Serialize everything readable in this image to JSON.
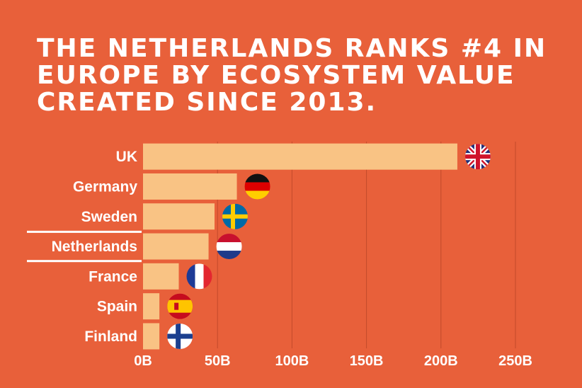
{
  "title_lines": [
    "THE NETHERLANDS RANKS #4 IN",
    "EUROPE BY ECOSYSTEM VALUE",
    "CREATED SINCE 2013."
  ],
  "colors": {
    "background": "#e8603a",
    "bar": "#f9c384",
    "gridline": "#c24a2b",
    "text": "#ffffff",
    "highlight_rule": "#ffffff"
  },
  "chart_data": {
    "type": "bar",
    "orientation": "horizontal",
    "categories": [
      "UK",
      "Germany",
      "Sweden",
      "Netherlands",
      "France",
      "Spain",
      "Finland"
    ],
    "values": [
      211,
      63,
      48,
      44,
      24,
      11,
      11
    ],
    "highlighted_category": "Netherlands",
    "xlim": [
      0,
      250
    ],
    "x_ticks": [
      0,
      50,
      100,
      150,
      200,
      250
    ],
    "x_tick_labels": [
      "0B",
      "50B",
      "100B",
      "150B",
      "200B",
      "250B"
    ],
    "grid": true,
    "flags": [
      "uk-flag-icon",
      "germany-flag-icon",
      "sweden-flag-icon",
      "netherlands-flag-icon",
      "france-flag-icon",
      "spain-flag-icon",
      "finland-flag-icon"
    ]
  }
}
